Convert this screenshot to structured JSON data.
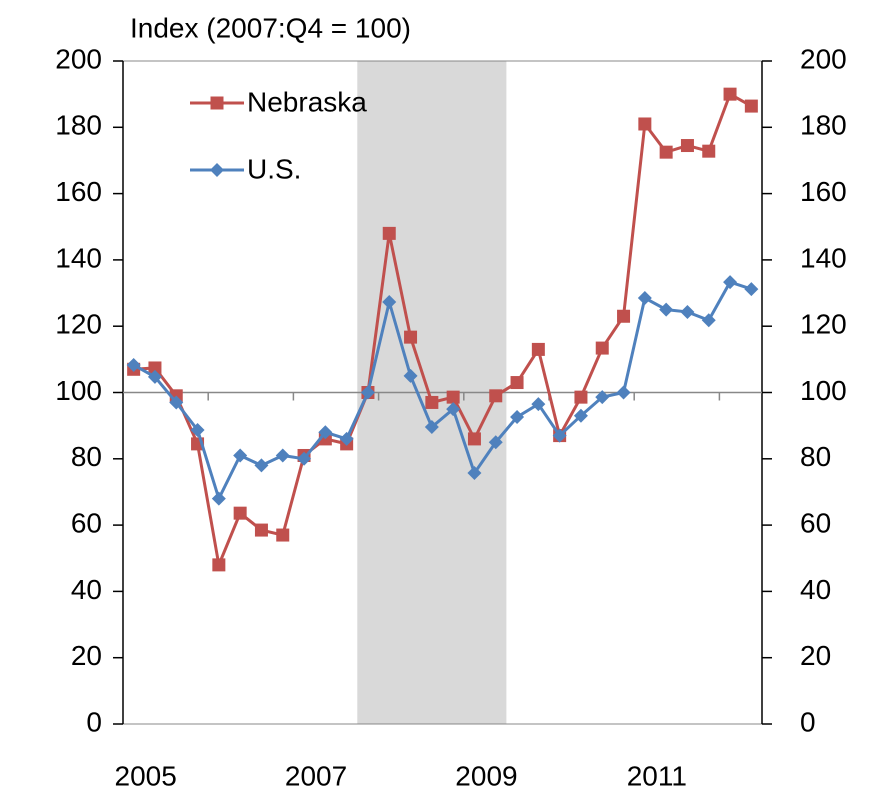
{
  "chart_data": {
    "type": "line",
    "title": "Index (2007:Q4 = 100)",
    "categories": [
      "2005",
      null,
      null,
      null,
      null,
      null,
      null,
      null,
      "2007",
      null,
      null,
      null,
      null,
      null,
      null,
      null,
      "2009",
      null,
      null,
      null,
      null,
      null,
      null,
      null,
      "2011",
      null,
      null,
      null,
      null,
      null
    ],
    "series": [
      {
        "name": "Nebraska",
        "color": "#c0504d",
        "marker": "square",
        "values": [
          107,
          107.4,
          99,
          84.5,
          48,
          63.6,
          58.5,
          57,
          81,
          86,
          84.5,
          100,
          148,
          116.7,
          97,
          98.6,
          86,
          99,
          103,
          113,
          87,
          98.6,
          113.4,
          123,
          181,
          172.5,
          174.5,
          172.8,
          190,
          186.4
        ]
      },
      {
        "name": "U.S.",
        "color": "#4f81bd",
        "marker": "diamond",
        "values": [
          108.3,
          104.7,
          97,
          88.7,
          68,
          81,
          78,
          81,
          80,
          88,
          86,
          100,
          127.3,
          105,
          89.6,
          95,
          75.7,
          85,
          92.6,
          96.5,
          87,
          93,
          98.6,
          100,
          128.5,
          125,
          124.3,
          121.8,
          133.3,
          131.2
        ]
      }
    ],
    "ylim": [
      0,
      200
    ],
    "yticks": [
      0,
      20,
      40,
      60,
      80,
      100,
      120,
      140,
      160,
      180,
      200
    ],
    "y2lim": [
      0,
      200
    ],
    "y2ticks": [
      0,
      20,
      40,
      60,
      80,
      100,
      120,
      140,
      160,
      180,
      200
    ],
    "x_axis_crosses": 100,
    "shaded_categories": [
      11,
      17
    ],
    "shade_color": "#d9d9d9",
    "legend": "top-left"
  }
}
